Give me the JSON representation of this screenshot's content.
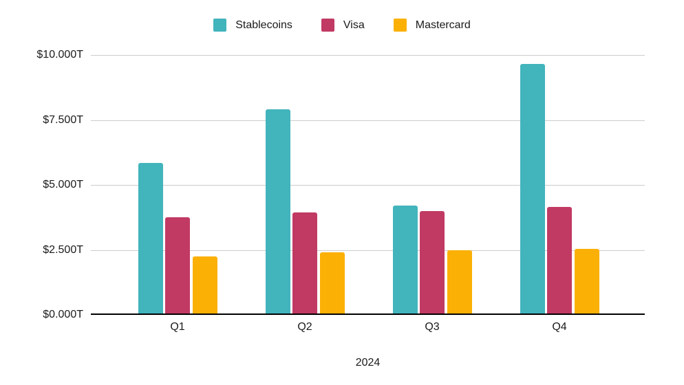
{
  "chart_data": {
    "type": "bar",
    "title": "",
    "categories": [
      "Q1",
      "Q2",
      "Q3",
      "Q4"
    ],
    "series": [
      {
        "name": "Stablecoins",
        "color": "#42B4BC",
        "values": [
          5.85,
          7.9,
          4.2,
          9.65
        ]
      },
      {
        "name": "Visa",
        "color": "#C13A64",
        "values": [
          3.75,
          3.95,
          4.0,
          4.15
        ]
      },
      {
        "name": "Mastercard",
        "color": "#FBB005",
        "values": [
          2.25,
          2.4,
          2.5,
          2.55
        ]
      }
    ],
    "xlabel": "2024",
    "ylabel": "",
    "ylim": [
      0,
      10
    ],
    "y_ticks": [
      {
        "label": "$0.000T",
        "value": 0
      },
      {
        "label": "$2.500T",
        "value": 2.5
      },
      {
        "label": "$5.000T",
        "value": 5
      },
      {
        "label": "$7.500T",
        "value": 7.5
      },
      {
        "label": "$10.000T",
        "value": 10
      }
    ],
    "legend_position": "top",
    "grid": true,
    "colors": {
      "background": "#FFFFFF",
      "gridline": "#CCCCCC",
      "axis_line": "#000000",
      "text": "#1A1A1A"
    }
  }
}
